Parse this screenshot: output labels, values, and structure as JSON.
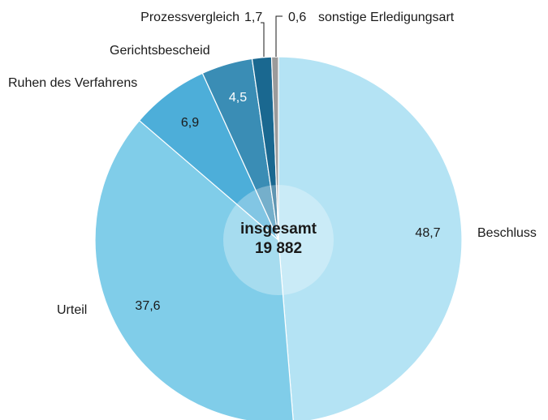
{
  "chart_data": {
    "type": "pie",
    "categories": [
      "Beschluss",
      "Urteil",
      "Ruhen des Verfahrens",
      "Gerichtsbescheid",
      "Prozessvergleich",
      "sonstige Erledigungsart"
    ],
    "values": [
      48.7,
      37.6,
      6.9,
      4.5,
      1.7,
      0.6
    ],
    "value_labels": [
      "48,7",
      "37,6",
      "6,9",
      "4,5",
      "1,7",
      "0,6"
    ],
    "colors": [
      "#b4e3f4",
      "#80cde9",
      "#4daed9",
      "#3a8db5",
      "#1a6890",
      "#9b9b9b"
    ],
    "center_title": "insgesamt",
    "total": {
      "value": 19882,
      "label": "19 882"
    }
  }
}
